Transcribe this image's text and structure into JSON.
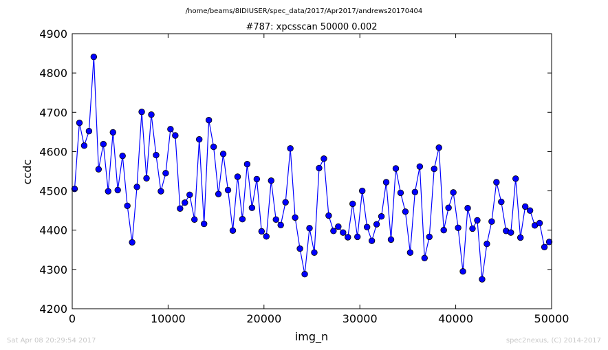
{
  "figure": {
    "suptitle": "/home/beams/8IDIUSER/spec_data/2017/Apr2017/andrews20170404",
    "footer_left": "Sat Apr 08 20:29:54 2017",
    "footer_right": "spec2nexus, (C) 2014-2017"
  },
  "chart_data": {
    "type": "line",
    "title": "#787: xpcsscan 50000 0.002",
    "xlabel": "img_n",
    "ylabel": "ccdc",
    "xlim": [
      0,
      50000
    ],
    "ylim": [
      4200,
      4900
    ],
    "xticks": [
      0,
      10000,
      20000,
      30000,
      40000,
      50000
    ],
    "yticks": [
      4200,
      4300,
      4400,
      4500,
      4600,
      4700,
      4800,
      4900
    ],
    "grid": false,
    "line_color": "#0000ff",
    "marker_color": "#0000ff",
    "marker": "circle",
    "series": [
      {
        "x": [
          250,
          750,
          1250,
          1750,
          2250,
          2750,
          3250,
          3750,
          4250,
          4750,
          5250,
          5750,
          6250,
          6750,
          7250,
          7750,
          8250,
          8750,
          9250,
          9750,
          10250,
          10750,
          11250,
          11750,
          12250,
          12750,
          13250,
          13750,
          14250,
          14750,
          15250,
          15750,
          16250,
          16750,
          17250,
          17750,
          18250,
          18750,
          19250,
          19750,
          20250,
          20750,
          21250,
          21750,
          22250,
          22750,
          23250,
          23750,
          24250,
          24750,
          25250,
          25750,
          26250,
          26750,
          27250,
          27750,
          28250,
          28750,
          29250,
          29750,
          30250,
          30750,
          31250,
          31750,
          32250,
          32750,
          33250,
          33750,
          34250,
          34750,
          35250,
          35750,
          36250,
          36750,
          37250,
          37750,
          38250,
          38750,
          39250,
          39750,
          40250,
          40750,
          41250,
          41750,
          42250,
          42750,
          43250,
          43750,
          44250,
          44750,
          45250,
          45750,
          46250,
          46750,
          47250,
          47750,
          48250,
          48750,
          49250,
          49750
        ],
        "y": [
          4505,
          4673,
          4615,
          4652,
          4841,
          4555,
          4619,
          4499,
          4649,
          4502,
          4589,
          4462,
          4369,
          4510,
          4701,
          4532,
          4694,
          4591,
          4499,
          4545,
          4657,
          4641,
          4455,
          4470,
          4490,
          4427,
          4631,
          4416,
          4680,
          4612,
          4492,
          4594,
          4502,
          4399,
          4536,
          4428,
          4568,
          4457,
          4530,
          4397,
          4384,
          4526,
          4427,
          4413,
          4471,
          4608,
          4432,
          4353,
          4288,
          4405,
          4343,
          4558,
          4582,
          4437,
          4398,
          4409,
          4394,
          4382,
          4467,
          4383,
          4500,
          4408,
          4373,
          4415,
          4435,
          4522,
          4376,
          4557,
          4495,
          4447,
          4343,
          4497,
          4562,
          4329,
          4383,
          4556,
          4610,
          4400,
          4457,
          4496,
          4406,
          4295,
          4456,
          4404,
          4425,
          4275,
          4365,
          4422,
          4522,
          4472,
          4398,
          4394,
          4531,
          4381,
          4460,
          4450,
          4412,
          4418,
          4357,
          4370
        ]
      }
    ]
  }
}
